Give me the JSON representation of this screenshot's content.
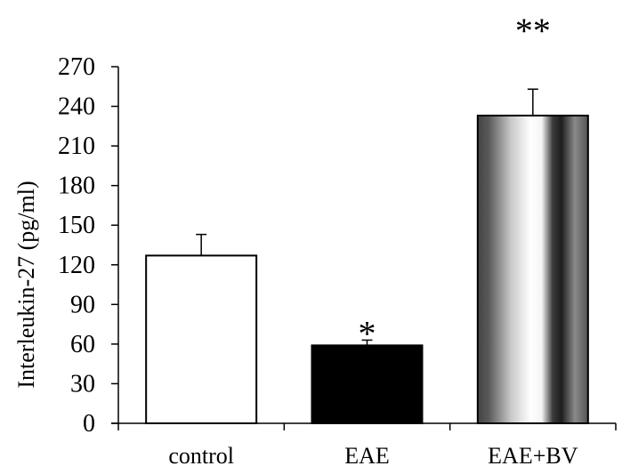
{
  "chart_data": {
    "type": "bar",
    "ylabel": "Interleukin-27   (pg/ml)",
    "categories": [
      "control",
      "EAE",
      "EAE+BV"
    ],
    "values": [
      127,
      59,
      233
    ],
    "errors": [
      16,
      4,
      20
    ],
    "significance": [
      "",
      "*",
      "**"
    ],
    "fills": [
      "white",
      "black",
      "metallic-gradient"
    ],
    "ylim": [
      0,
      270
    ],
    "yticks": [
      0,
      30,
      60,
      90,
      120,
      150,
      180,
      210,
      240,
      270
    ],
    "grid": false,
    "legend": "none"
  }
}
